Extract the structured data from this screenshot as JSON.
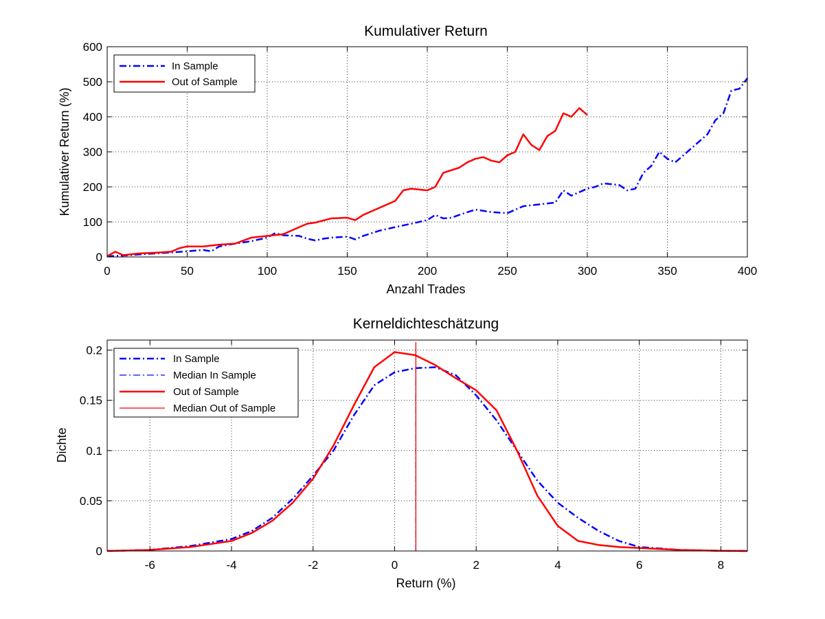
{
  "figure": {
    "background": "#ffffff"
  },
  "chart_data": [
    {
      "type": "line",
      "title": "Kumulativer Return",
      "xlabel": "Anzahl Trades",
      "ylabel": "Kumulativer Return (%)",
      "xlim": [
        0,
        400
      ],
      "ylim": [
        0,
        600
      ],
      "xticks": [
        0,
        50,
        100,
        150,
        200,
        250,
        300,
        350,
        400
      ],
      "yticks": [
        0,
        100,
        200,
        300,
        400,
        500,
        600
      ],
      "xtick_labels": [
        "0",
        "50",
        "100",
        "150",
        "200",
        "250",
        "300",
        "350",
        "400"
      ],
      "ytick_labels": [
        "0",
        "100",
        "200",
        "300",
        "400",
        "500",
        "600"
      ],
      "grid": true,
      "legend_position": "top-left",
      "series": [
        {
          "name": "In Sample",
          "color": "#0000ff",
          "style": "dash-dot",
          "x": [
            0,
            10,
            20,
            30,
            40,
            50,
            60,
            65,
            70,
            80,
            90,
            100,
            105,
            110,
            120,
            125,
            130,
            135,
            140,
            150,
            155,
            160,
            170,
            180,
            190,
            200,
            205,
            210,
            215,
            220,
            230,
            240,
            250,
            260,
            270,
            280,
            285,
            290,
            300,
            305,
            310,
            320,
            325,
            330,
            335,
            340,
            345,
            350,
            355,
            360,
            370,
            375,
            380,
            385,
            390,
            395,
            400
          ],
          "y": [
            2,
            4,
            7,
            10,
            13,
            16,
            20,
            16,
            30,
            38,
            45,
            55,
            68,
            62,
            60,
            52,
            47,
            52,
            55,
            58,
            50,
            60,
            75,
            85,
            95,
            105,
            120,
            110,
            112,
            120,
            135,
            128,
            125,
            145,
            150,
            155,
            190,
            175,
            195,
            200,
            210,
            205,
            190,
            195,
            240,
            260,
            300,
            280,
            270,
            290,
            330,
            350,
            390,
            410,
            475,
            480,
            510
          ]
        },
        {
          "name": "Out of Sample",
          "color": "#ff0000",
          "style": "solid",
          "x": [
            0,
            5,
            10,
            20,
            30,
            40,
            45,
            50,
            60,
            70,
            80,
            90,
            100,
            110,
            120,
            125,
            130,
            140,
            150,
            155,
            160,
            170,
            180,
            185,
            190,
            200,
            205,
            210,
            220,
            225,
            230,
            235,
            240,
            245,
            250,
            255,
            260,
            265,
            270,
            275,
            280,
            285,
            290,
            295,
            300
          ],
          "y": [
            2,
            15,
            5,
            10,
            12,
            15,
            25,
            30,
            30,
            35,
            38,
            55,
            60,
            65,
            85,
            95,
            98,
            110,
            112,
            105,
            120,
            140,
            160,
            190,
            195,
            190,
            200,
            240,
            255,
            270,
            280,
            285,
            275,
            270,
            290,
            300,
            350,
            320,
            305,
            345,
            360,
            410,
            400,
            425,
            405
          ]
        }
      ]
    },
    {
      "type": "line",
      "title": "Kerneldichteschätzung",
      "xlabel": "Return (%)",
      "ylabel": "Dichte",
      "xlim": [
        -7.05,
        8.65
      ],
      "ylim": [
        0,
        0.21
      ],
      "xticks": [
        -6,
        -4,
        -2,
        0,
        2,
        4,
        6,
        8
      ],
      "yticks": [
        0,
        0.05,
        0.1,
        0.15,
        0.2
      ],
      "xtick_labels": [
        "-6",
        "-4",
        "-2",
        "0",
        "2",
        "4",
        "6",
        "8"
      ],
      "ytick_labels": [
        "0",
        "0.05",
        "0.1",
        "0.15",
        "0.2"
      ],
      "grid": true,
      "legend_position": "top-left",
      "series": [
        {
          "name": "In Sample",
          "color": "#0000ff",
          "style": "dash-dot",
          "x": [
            -7.05,
            -6,
            -5,
            -4,
            -3.5,
            -3,
            -2.5,
            -2,
            -1.5,
            -1,
            -0.5,
            0,
            0.5,
            1,
            1.5,
            2,
            2.5,
            3,
            3.5,
            4,
            4.5,
            5,
            5.5,
            6,
            7,
            8,
            8.65
          ],
          "y": [
            0,
            0.001,
            0.005,
            0.012,
            0.02,
            0.033,
            0.052,
            0.075,
            0.1,
            0.135,
            0.165,
            0.178,
            0.182,
            0.183,
            0.175,
            0.155,
            0.13,
            0.1,
            0.07,
            0.048,
            0.033,
            0.02,
            0.01,
            0.004,
            0.001,
            0.0002,
            0
          ]
        },
        {
          "name": "Median In Sample",
          "color": "#0000ff",
          "style": "dash-dot-thin",
          "x": [
            0.52,
            0.52
          ],
          "y": [
            0,
            0.183
          ]
        },
        {
          "name": "Out of Sample",
          "color": "#ff0000",
          "style": "solid",
          "x": [
            -7.05,
            -6,
            -5,
            -4,
            -3.5,
            -3,
            -2.5,
            -2,
            -1.5,
            -1,
            -0.5,
            0,
            0.5,
            1,
            1.5,
            2,
            2.5,
            3,
            3.5,
            4,
            4.5,
            5,
            5.5,
            6,
            7,
            8,
            8.65
          ],
          "y": [
            0,
            0.001,
            0.004,
            0.01,
            0.018,
            0.03,
            0.048,
            0.072,
            0.105,
            0.145,
            0.183,
            0.198,
            0.195,
            0.185,
            0.172,
            0.16,
            0.14,
            0.1,
            0.055,
            0.025,
            0.01,
            0.006,
            0.004,
            0.003,
            0.001,
            0.0002,
            0
          ]
        },
        {
          "name": "Median Out of Sample",
          "color": "#ff0000",
          "style": "solid-thin",
          "x": [
            0.52,
            0.52
          ],
          "y": [
            0,
            0.208
          ]
        }
      ]
    }
  ]
}
